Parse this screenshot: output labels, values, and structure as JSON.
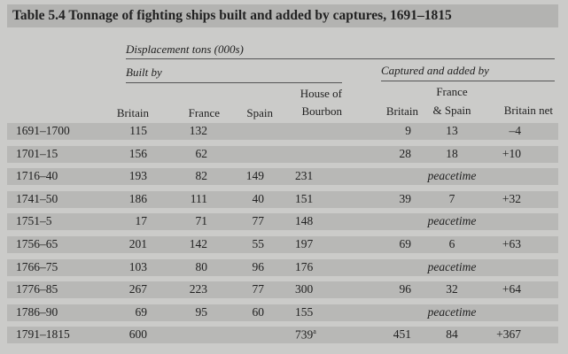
{
  "title": "Table 5.4  Tonnage of fighting ships built and added by captures, 1691–1815",
  "headers": {
    "units": "Displacement tons (000s)",
    "built_by": "Built by",
    "captured": "Captured and added by",
    "built_cols": [
      "Britain",
      "France",
      "Spain",
      "House of",
      "Bourbon"
    ],
    "captured_cols": [
      "Britain",
      "France",
      "& Spain",
      "Britain net"
    ]
  },
  "rows": [
    {
      "period": "1691–1700",
      "britain": "115",
      "france": "132",
      "spain": "",
      "bourbon": "",
      "cap_britain": "9",
      "cap_fs": "13",
      "net": "–4"
    },
    {
      "period": "1701–15",
      "britain": "156",
      "france": "62",
      "spain": "",
      "bourbon": "",
      "cap_britain": "28",
      "cap_fs": "18",
      "net": "+10"
    },
    {
      "period": "1716–40",
      "britain": "193",
      "france": "82",
      "spain": "149",
      "bourbon": "231",
      "peace": "peacetime"
    },
    {
      "period": "1741–50",
      "britain": "186",
      "france": "111",
      "spain": "40",
      "bourbon": "151",
      "cap_britain": "39",
      "cap_fs": "7",
      "net": "+32"
    },
    {
      "period": "1751–5",
      "britain": "17",
      "france": "71",
      "spain": "77",
      "bourbon": "148",
      "peace": "peacetime"
    },
    {
      "period": "1756–65",
      "britain": "201",
      "france": "142",
      "spain": "55",
      "bourbon": "197",
      "cap_britain": "69",
      "cap_fs": "6",
      "net": "+63"
    },
    {
      "period": "1766–75",
      "britain": "103",
      "france": "80",
      "spain": "96",
      "bourbon": "176",
      "peace": "peacetime"
    },
    {
      "period": "1776–85",
      "britain": "267",
      "france": "223",
      "spain": "77",
      "bourbon": "300",
      "cap_britain": "96",
      "cap_fs": "32",
      "net": "+64"
    },
    {
      "period": "1786–90",
      "britain": "69",
      "france": "95",
      "spain": "60",
      "bourbon": "155",
      "peace": "peacetime"
    },
    {
      "period": "1791–1815",
      "britain": "600",
      "france": "",
      "spain": "",
      "bourbon": "739",
      "bourbon_note": "a",
      "cap_britain": "451",
      "cap_fs": "84",
      "net": "+367"
    }
  ]
}
